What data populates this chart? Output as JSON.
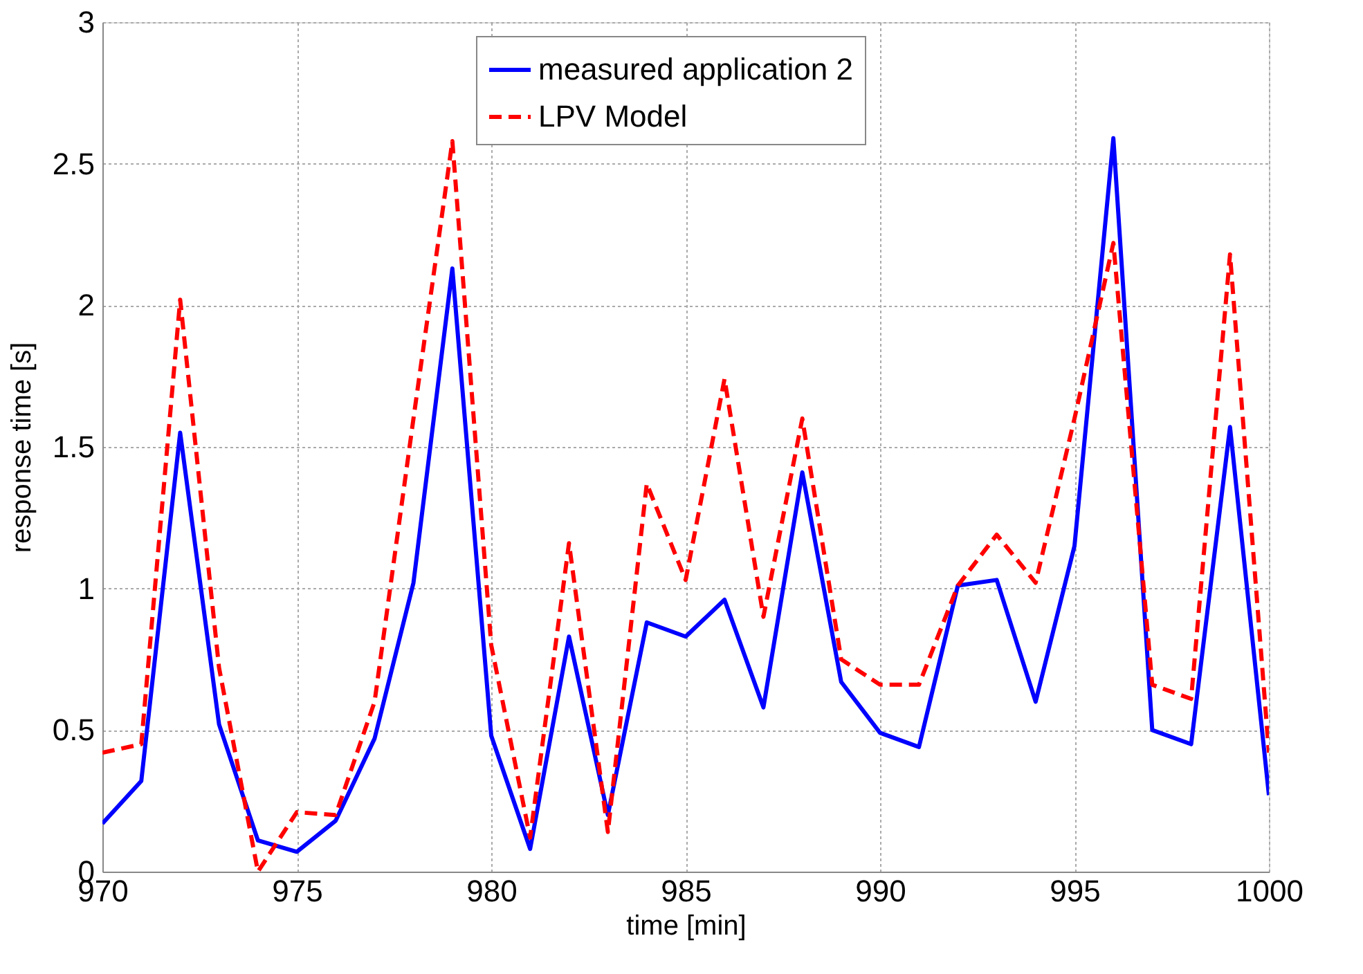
{
  "chart_data": {
    "type": "line",
    "xlabel": "time [min]",
    "ylabel": "response time [s]",
    "x": [
      970,
      971,
      972,
      973,
      974,
      975,
      976,
      977,
      978,
      979,
      980,
      981,
      982,
      983,
      984,
      985,
      986,
      987,
      988,
      989,
      990,
      991,
      992,
      993,
      994,
      995,
      996,
      997,
      998,
      999,
      1000
    ],
    "series": [
      {
        "name": "measured application 2",
        "color": "#0000ff",
        "line_style": "solid",
        "values": [
          0.17,
          0.32,
          1.55,
          0.52,
          0.11,
          0.07,
          0.18,
          0.47,
          1.02,
          2.13,
          0.48,
          0.08,
          0.83,
          0.2,
          0.88,
          0.83,
          0.96,
          0.58,
          1.41,
          0.67,
          0.49,
          0.44,
          1.01,
          1.03,
          0.6,
          1.15,
          2.59,
          0.5,
          0.45,
          1.57,
          0.27
        ]
      },
      {
        "name": "LPV Model",
        "color": "#ff0000",
        "line_style": "dashed",
        "values": [
          0.42,
          0.45,
          2.02,
          0.72,
          0.0,
          0.21,
          0.2,
          0.6,
          1.6,
          2.58,
          0.8,
          0.12,
          1.16,
          0.14,
          1.37,
          1.03,
          1.74,
          0.9,
          1.6,
          0.75,
          0.66,
          0.66,
          1.01,
          1.19,
          1.02,
          1.6,
          2.22,
          0.66,
          0.61,
          2.18,
          0.42
        ]
      }
    ],
    "xlim": [
      970,
      1000
    ],
    "xticks": [
      970,
      975,
      980,
      985,
      990,
      995,
      1000
    ],
    "ylim": [
      0,
      3
    ],
    "yticks": [
      0,
      0.5,
      1,
      1.5,
      2,
      2.5,
      3
    ],
    "grid": true,
    "legend": "top right",
    "marker": "none"
  }
}
